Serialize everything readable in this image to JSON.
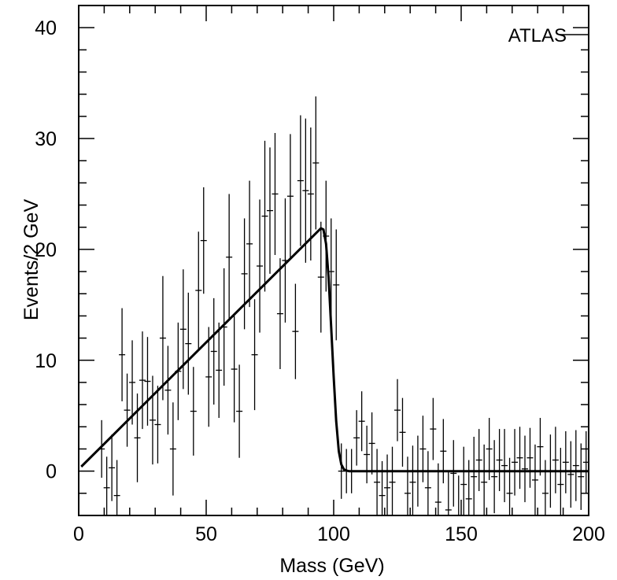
{
  "chart_data": {
    "type": "scatter",
    "title": "",
    "xlabel": "Mass (GeV)",
    "ylabel": "Events/2 GeV",
    "xlim": [
      0,
      200
    ],
    "ylim": [
      -4,
      42
    ],
    "x_ticks": [
      0,
      50,
      100,
      150,
      200
    ],
    "x_tick_labels": [
      "0",
      "50",
      "100",
      "150",
      "200"
    ],
    "y_ticks": [
      0,
      10,
      20,
      30,
      40
    ],
    "y_tick_labels": [
      "0",
      "10",
      "20",
      "30",
      "40"
    ],
    "annotation": "ATLAS",
    "grid": false,
    "data": {
      "x": [
        9,
        11,
        13,
        15,
        17,
        19,
        21,
        23,
        25,
        27,
        29,
        31,
        33,
        35,
        37,
        39,
        41,
        43,
        45,
        47,
        49,
        51,
        53,
        55,
        57,
        59,
        61,
        63,
        65,
        67,
        69,
        71,
        73,
        75,
        77,
        79,
        81,
        83,
        85,
        87,
        89,
        91,
        93,
        95,
        97,
        99,
        101,
        103,
        105,
        107,
        109,
        111,
        113,
        115,
        117,
        119,
        121,
        123,
        125,
        127,
        129,
        131,
        133,
        135,
        137,
        139,
        141,
        143,
        145,
        147,
        149,
        151,
        153,
        155,
        157,
        159,
        161,
        163,
        165,
        167,
        169,
        171,
        173,
        175,
        177,
        179,
        181,
        183,
        185,
        187,
        189,
        191,
        193,
        195,
        197,
        199
      ],
      "y": [
        2.0,
        -1.5,
        0.3,
        -2.2,
        10.5,
        5.5,
        8.0,
        3.0,
        8.2,
        8.1,
        4.6,
        4.2,
        12.0,
        7.3,
        2.0,
        9.0,
        12.8,
        11.5,
        5.4,
        16.3,
        20.8,
        8.5,
        10.8,
        9.1,
        13.0,
        19.3,
        9.2,
        5.4,
        17.8,
        20.5,
        10.5,
        18.5,
        23.0,
        23.5,
        25.0,
        14.2,
        19.0,
        24.8,
        12.6,
        26.2,
        25.3,
        25.0,
        27.8,
        17.5,
        21.2,
        18.0,
        16.8,
        0.0,
        0.0,
        0.0,
        3.0,
        4.5,
        1.5,
        2.5,
        -1.0,
        -2.2,
        -1.5,
        -1.0,
        5.5,
        3.5,
        -2.0,
        -1.0,
        0.0,
        2.0,
        -1.5,
        3.8,
        -2.8,
        1.8,
        -3.5,
        -0.2,
        -4.0,
        -1.2,
        -2.5,
        -0.5,
        1.0,
        -1.0,
        2.0,
        -0.5,
        1.0,
        0.5,
        -2.0,
        0.8,
        1.2,
        0.2,
        1.2,
        -0.8,
        2.2,
        -2.0,
        0.0,
        1.0,
        -1.2,
        0.8,
        -0.3,
        0.5,
        -0.5,
        0.8
      ],
      "yerr": [
        2.6,
        2.8,
        3.0,
        3.2,
        4.2,
        3.3,
        3.8,
        4.0,
        4.4,
        4.0,
        4.0,
        3.5,
        5.6,
        4.0,
        4.2,
        4.4,
        5.4,
        4.6,
        4.0,
        5.3,
        4.8,
        4.5,
        4.8,
        4.3,
        5.3,
        5.7,
        4.8,
        4.2,
        5.0,
        5.7,
        5.0,
        6.0,
        6.8,
        5.7,
        5.5,
        5.0,
        5.6,
        5.6,
        4.3,
        5.9,
        6.5,
        6.0,
        6.0,
        5.0,
        5.0,
        4.8,
        5.0,
        2.5,
        2.0,
        2.0,
        2.5,
        2.7,
        2.6,
        2.8,
        3.0,
        3.1,
        3.0,
        3.2,
        2.8,
        3.1,
        3.3,
        3.3,
        3.2,
        3.0,
        3.3,
        2.8,
        3.5,
        2.9,
        3.5,
        3.0,
        3.6,
        3.4,
        3.5,
        3.6,
        2.8,
        3.4,
        2.8,
        3.3,
        2.8,
        3.3,
        3.2,
        3.0,
        2.8,
        3.0,
        2.7,
        3.2,
        2.6,
        3.0,
        3.3,
        3.0,
        3.3,
        2.8,
        3.0,
        3.2,
        3.0,
        2.8
      ]
    },
    "fit": {
      "name": "",
      "x": [
        1,
        95,
        96,
        97,
        98,
        99,
        100,
        101,
        102,
        103,
        104,
        105,
        106,
        200
      ],
      "y": [
        0.4,
        21.9,
        21.8,
        20.5,
        17.5,
        13.0,
        8.5,
        4.5,
        1.8,
        0.6,
        0.15,
        0.05,
        0.0,
        0.0
      ]
    }
  }
}
